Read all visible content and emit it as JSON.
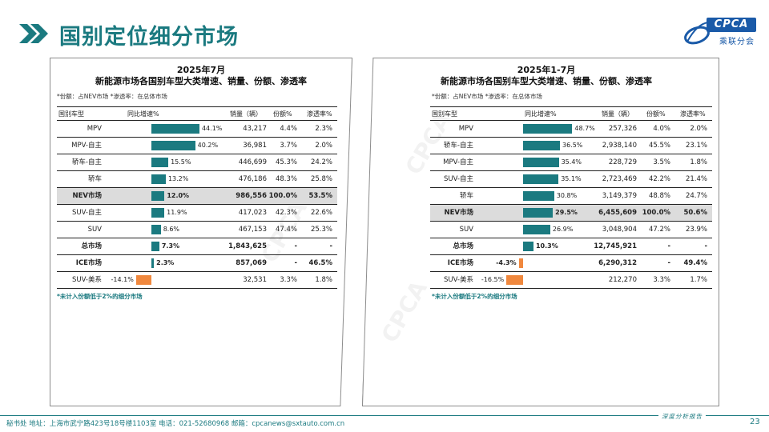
{
  "header": {
    "title": "国别定位细分市场"
  },
  "logo": {
    "brand": "CPCA",
    "subtitle": "乘联分会"
  },
  "colors": {
    "accent": "#1b7a80",
    "bar_positive": "#1b7a80",
    "bar_negative": "#f0883e",
    "highlight_row": "#dcdcdc"
  },
  "left_table": {
    "title_line1": "2025年7月",
    "title_line2": "新能源市场各国别车型大类增速、销量、份额、渗透率",
    "note": "*份额：占NEV市场   *渗透率：在总体市场",
    "headers": {
      "segment": "国别车型",
      "growth": "同比增速%",
      "volume": "销量（辆）",
      "share": "份额%",
      "penetration": "渗透率%"
    },
    "footnote": "*未计入份额低于2%的细分市场",
    "rows": [
      {
        "segment": "MPV",
        "growth": 44.1,
        "growth_label": "44.1%",
        "volume": "43,217",
        "share": "4.4%",
        "penetration": "2.3%",
        "bold": false,
        "highlight": false
      },
      {
        "segment": "MPV-自主",
        "growth": 40.2,
        "growth_label": "40.2%",
        "volume": "36,981",
        "share": "3.7%",
        "penetration": "2.0%",
        "bold": false,
        "highlight": false
      },
      {
        "segment": "轿车-自主",
        "growth": 15.5,
        "growth_label": "15.5%",
        "volume": "446,699",
        "share": "45.3%",
        "penetration": "24.2%",
        "bold": false,
        "highlight": false
      },
      {
        "segment": "轿车",
        "growth": 13.2,
        "growth_label": "13.2%",
        "volume": "476,186",
        "share": "48.3%",
        "penetration": "25.8%",
        "bold": false,
        "highlight": false
      },
      {
        "segment": "NEV市场",
        "growth": 12.0,
        "growth_label": "12.0%",
        "volume": "986,556",
        "share": "100.0%",
        "penetration": "53.5%",
        "bold": true,
        "highlight": true
      },
      {
        "segment": "SUV-自主",
        "growth": 11.9,
        "growth_label": "11.9%",
        "volume": "417,023",
        "share": "42.3%",
        "penetration": "22.6%",
        "bold": false,
        "highlight": false
      },
      {
        "segment": "SUV",
        "growth": 8.6,
        "growth_label": "8.6%",
        "volume": "467,153",
        "share": "47.4%",
        "penetration": "25.3%",
        "bold": false,
        "highlight": false
      },
      {
        "segment": "总市场",
        "growth": 7.3,
        "growth_label": "7.3%",
        "volume": "1,843,625",
        "share": "-",
        "penetration": "-",
        "bold": true,
        "highlight": false
      },
      {
        "segment": "ICE市场",
        "growth": 2.3,
        "growth_label": "2.3%",
        "volume": "857,069",
        "share": "-",
        "penetration": "46.5%",
        "bold": true,
        "highlight": false
      },
      {
        "segment": "SUV-美系",
        "growth": -14.1,
        "growth_label": "-14.1%",
        "volume": "32,531",
        "share": "3.3%",
        "penetration": "1.8%",
        "bold": false,
        "highlight": false
      }
    ]
  },
  "right_table": {
    "title_line1": "2025年1-7月",
    "title_line2": "新能源市场各国别车型大类增速、销量、份额、渗透率",
    "note": "*份额：占NEV市场   *渗透率：在总体市场",
    "headers": {
      "segment": "国别车型",
      "growth": "同比增速%",
      "volume": "销量（辆）",
      "share": "份额%",
      "penetration": "渗透率%"
    },
    "footnote": "*未计入份额低于2%的细分市场",
    "rows": [
      {
        "segment": "MPV",
        "growth": 48.7,
        "growth_label": "48.7%",
        "volume": "257,326",
        "share": "4.0%",
        "penetration": "2.0%",
        "bold": false,
        "highlight": false
      },
      {
        "segment": "轿车-自主",
        "growth": 36.5,
        "growth_label": "36.5%",
        "volume": "2,938,140",
        "share": "45.5%",
        "penetration": "23.1%",
        "bold": false,
        "highlight": false
      },
      {
        "segment": "MPV-自主",
        "growth": 35.4,
        "growth_label": "35.4%",
        "volume": "228,729",
        "share": "3.5%",
        "penetration": "1.8%",
        "bold": false,
        "highlight": false
      },
      {
        "segment": "SUV-自主",
        "growth": 35.1,
        "growth_label": "35.1%",
        "volume": "2,723,469",
        "share": "42.2%",
        "penetration": "21.4%",
        "bold": false,
        "highlight": false
      },
      {
        "segment": "轿车",
        "growth": 30.8,
        "growth_label": "30.8%",
        "volume": "3,149,379",
        "share": "48.8%",
        "penetration": "24.7%",
        "bold": false,
        "highlight": false
      },
      {
        "segment": "NEV市场",
        "growth": 29.5,
        "growth_label": "29.5%",
        "volume": "6,455,609",
        "share": "100.0%",
        "penetration": "50.6%",
        "bold": true,
        "highlight": true
      },
      {
        "segment": "SUV",
        "growth": 26.9,
        "growth_label": "26.9%",
        "volume": "3,048,904",
        "share": "47.2%",
        "penetration": "23.9%",
        "bold": false,
        "highlight": false
      },
      {
        "segment": "总市场",
        "growth": 10.3,
        "growth_label": "10.3%",
        "volume": "12,745,921",
        "share": "-",
        "penetration": "-",
        "bold": true,
        "highlight": false
      },
      {
        "segment": "ICE市场",
        "growth": -4.3,
        "growth_label": "-4.3%",
        "volume": "6,290,312",
        "share": "-",
        "penetration": "49.4%",
        "bold": true,
        "highlight": false
      },
      {
        "segment": "SUV-美系",
        "growth": -16.5,
        "growth_label": "-16.5%",
        "volume": "212,270",
        "share": "3.3%",
        "penetration": "1.7%",
        "bold": false,
        "highlight": false
      }
    ]
  },
  "footer": {
    "contact": "秘书处  地址：上海市武宁路423号18号楼1103室  电话：021-52680968   邮箱：cpcanews@sxtauto.com.cn",
    "tagline": "深度分析报告",
    "page_number": "23"
  }
}
